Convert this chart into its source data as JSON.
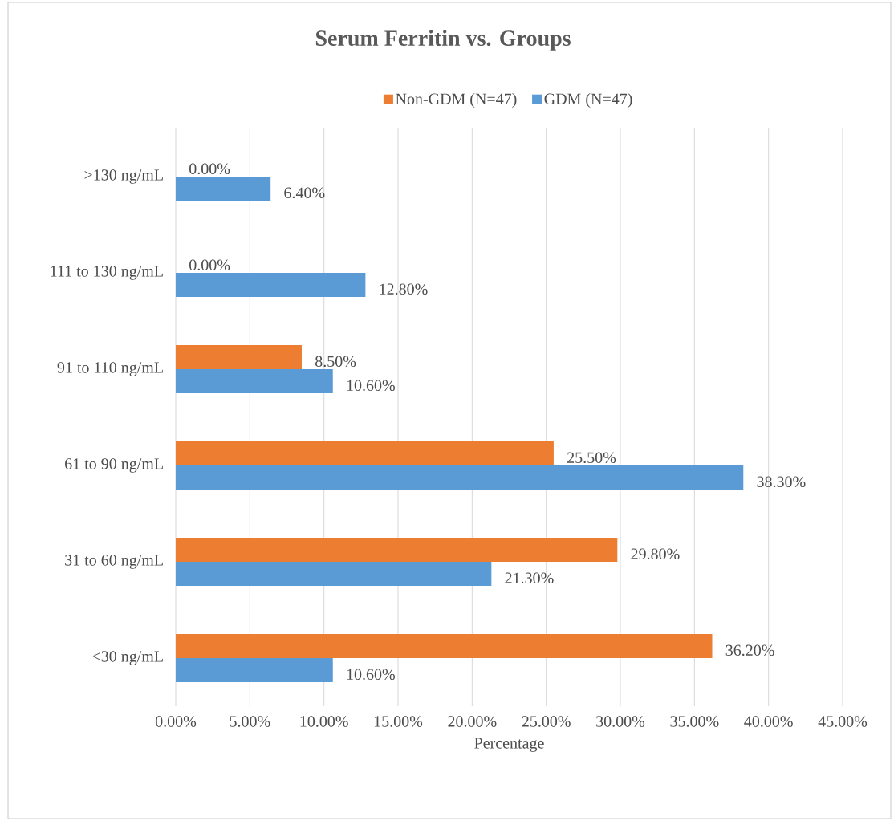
{
  "chart_data": {
    "type": "bar",
    "orientation": "horizontal",
    "title": "Serum Ferritin vs. Groups",
    "xlabel": "Percentage",
    "categories": [
      ">130 ng/mL",
      "111 to 130 ng/mL",
      "91 to 110 ng/mL",
      "61 to 90 ng/mL",
      "31 to 60 ng/mL",
      "<30 ng/mL"
    ],
    "series": [
      {
        "name": "Non-GDM (N=47)",
        "color": "#ed7d31",
        "values": [
          0,
          0,
          8.5,
          25.5,
          29.8,
          36.2
        ],
        "value_labels": [
          "0.00%",
          "0.00%",
          "8.50%",
          "25.50%",
          "29.80%",
          "36.20%"
        ]
      },
      {
        "name": "GDM (N=47)",
        "color": "#5b9bd5",
        "values": [
          6.4,
          12.8,
          10.6,
          38.3,
          21.3,
          10.6
        ],
        "value_labels": [
          "6.40%",
          "12.80%",
          "10.60%",
          "38.30%",
          "21.30%",
          "10.60%"
        ]
      }
    ],
    "xlim": [
      0,
      45
    ],
    "xticks": [
      {
        "value": 0,
        "label": "0.00%"
      },
      {
        "value": 5,
        "label": "5.00%"
      },
      {
        "value": 10,
        "label": "10.00%"
      },
      {
        "value": 15,
        "label": "15.00%"
      },
      {
        "value": 20,
        "label": "20.00%"
      },
      {
        "value": 25,
        "label": "25.00%"
      },
      {
        "value": 30,
        "label": "30.00%"
      },
      {
        "value": 35,
        "label": "35.00%"
      },
      {
        "value": 40,
        "label": "40.00%"
      },
      {
        "value": 45,
        "label": "45.00%"
      }
    ],
    "grid": "x",
    "legend": "top"
  }
}
